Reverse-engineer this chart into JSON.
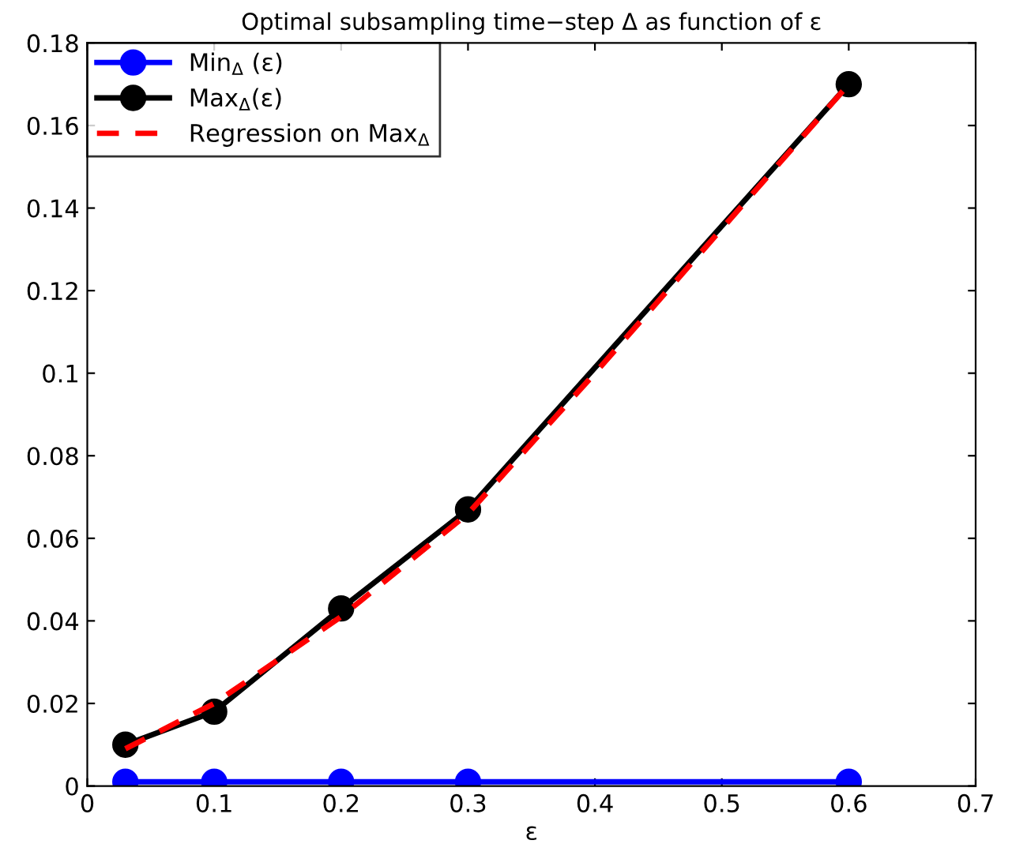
{
  "chart_data": {
    "type": "line",
    "title": "Optimal subsampling time−step Δ as function of ε",
    "xlabel": "ε",
    "xlim": [
      0,
      0.7
    ],
    "xticks": [
      0,
      0.1,
      0.2,
      0.3,
      0.4,
      0.5,
      0.6,
      0.7
    ],
    "ylim": [
      0,
      0.18
    ],
    "yticks": [
      0,
      0.02,
      0.04,
      0.06,
      0.08,
      0.1,
      0.12,
      0.14,
      0.16,
      0.18
    ],
    "grid": false,
    "legend": "top left",
    "series": [
      {
        "name": "Min$_{Δ}$ (ε)",
        "color": "#0000ff",
        "marker": "circle",
        "line_style": "solid",
        "x": [
          0.03,
          0.1,
          0.2,
          0.3,
          0.6
        ],
        "values": [
          0.001,
          0.001,
          0.001,
          0.001,
          0.001
        ]
      },
      {
        "name": "Max$_{Δ}$(ε)",
        "color": "#000000",
        "marker": "circle",
        "line_style": "solid",
        "x": [
          0.03,
          0.1,
          0.2,
          0.3,
          0.6
        ],
        "values": [
          0.01,
          0.018,
          0.043,
          0.067,
          0.17
        ]
      },
      {
        "name": "Regression on Max$_{Δ}$",
        "color": "#ff0000",
        "marker": "none",
        "line_style": "dashed",
        "x": [
          0.03,
          0.1,
          0.2,
          0.3,
          0.4,
          0.5,
          0.6
        ],
        "values": [
          0.009,
          0.02,
          0.041,
          0.066,
          0.1,
          0.135,
          0.17
        ]
      }
    ]
  }
}
